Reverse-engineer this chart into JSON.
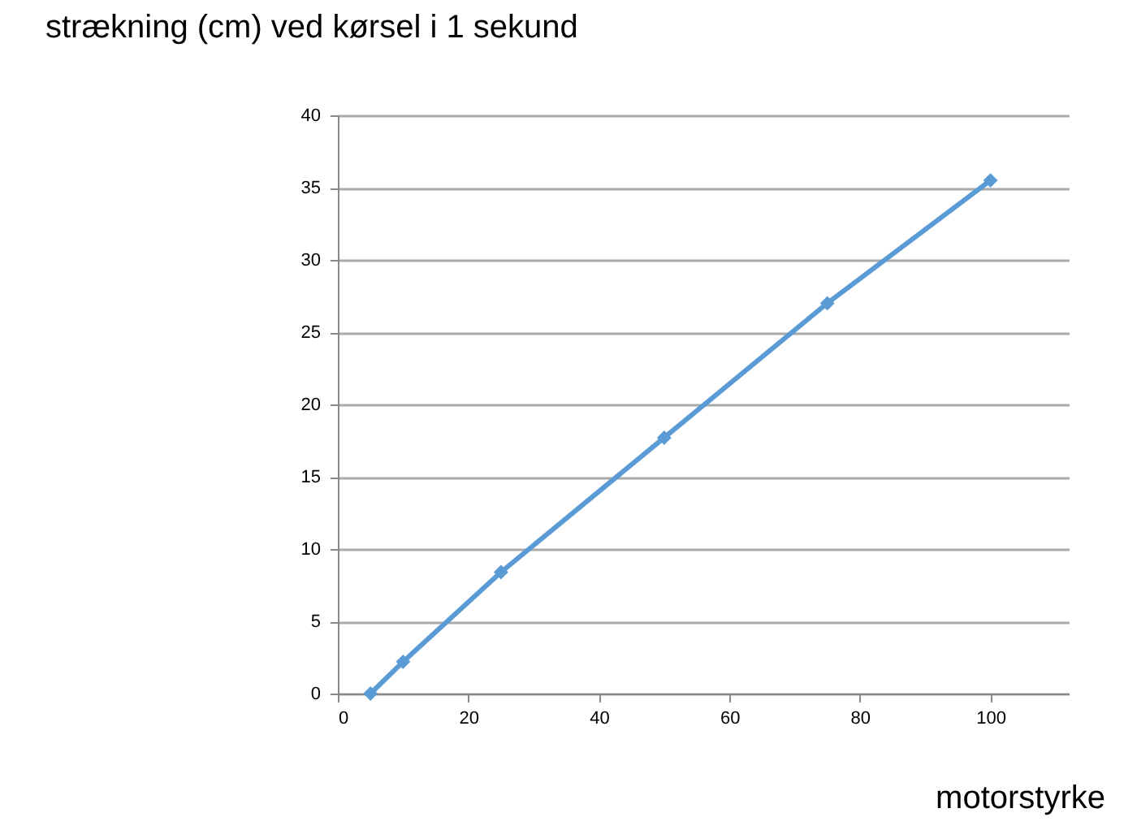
{
  "chart_data": {
    "type": "line",
    "title": "strækning (cm) ved kørsel i 1 sekund",
    "xlabel": "motorstyrke",
    "x": [
      5,
      10,
      25,
      50,
      75,
      100
    ],
    "series": [
      {
        "color": "#5b9bd5",
        "values": [
          0,
          2.2,
          8.4,
          17.7,
          27.0,
          35.5
        ]
      }
    ],
    "xlim": [
      0,
      112
    ],
    "xticks": [
      0,
      20,
      40,
      60,
      80,
      100
    ],
    "ylim": [
      0,
      40
    ],
    "yticks": [
      0,
      5,
      10,
      15,
      20,
      25,
      30,
      35,
      40
    ],
    "grid": "y",
    "marker": "diamond",
    "line_style": "solid"
  }
}
